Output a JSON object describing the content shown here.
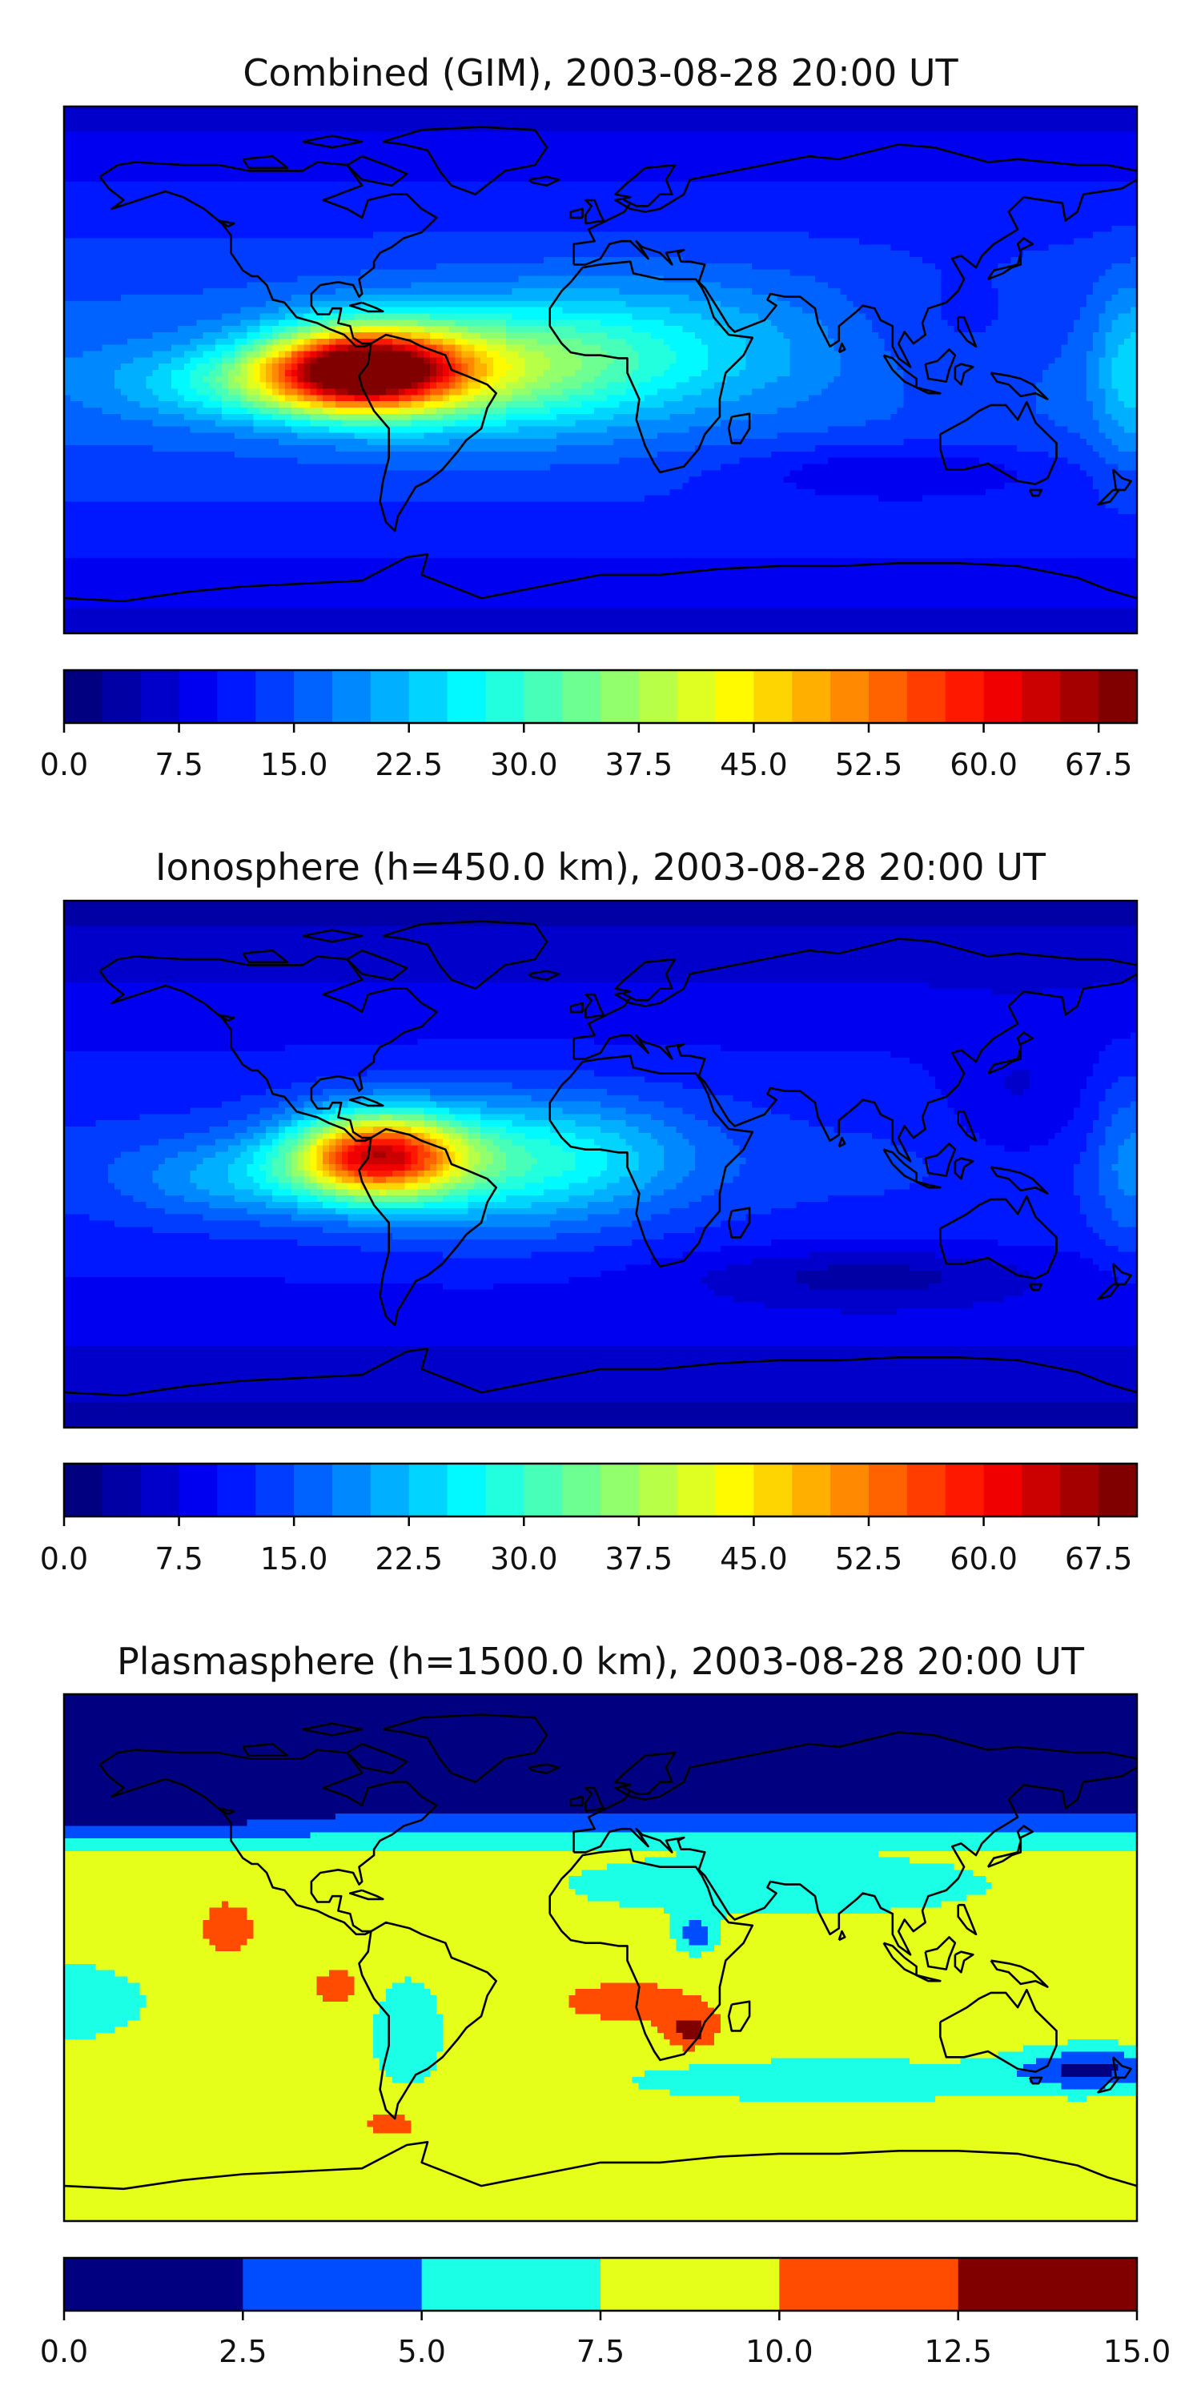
{
  "chart_data": [
    {
      "type": "heatmap",
      "title": "Combined (GIM), 2003-08-28 20:00 UT",
      "colorbar": {
        "range": [
          0,
          70
        ],
        "levels": 28,
        "ticks": [
          "0.0",
          "7.5",
          "15.0",
          "22.5",
          "30.0",
          "37.5",
          "45.0",
          "52.5",
          "60.0",
          "67.5"
        ],
        "colormap": "jet"
      },
      "field": {
        "background": 16,
        "features": [
          {
            "name": "South American equatorial anomaly",
            "lon": -80,
            "lat": 0,
            "peak": 68
          },
          {
            "name": "Atlantic extension",
            "lon": -40,
            "lat": 0,
            "peak": 35
          },
          {
            "name": "African equatorial band",
            "lon": 15,
            "lat": 10,
            "peak": 22
          },
          {
            "name": "Southern low",
            "lon": 100,
            "lat": -35,
            "peak": 8
          }
        ]
      }
    },
    {
      "type": "heatmap",
      "title": "Ionosphere  (h=450.0 km), 2003-08-28 20:00 UT",
      "colorbar": {
        "range": [
          0,
          70
        ],
        "levels": 28,
        "ticks": [
          "0.0",
          "7.5",
          "15.0",
          "22.5",
          "30.0",
          "37.5",
          "45.0",
          "52.5",
          "60.0",
          "67.5"
        ],
        "colormap": "jet"
      },
      "field": {
        "background": 12,
        "features": [
          {
            "name": "South American equatorial anomaly",
            "lon": -75,
            "lat": 3,
            "peak": 55
          },
          {
            "name": "Atlantic extension",
            "lon": -35,
            "lat": 0,
            "peak": 25
          },
          {
            "name": "Southern Indian Ocean low",
            "lon": 90,
            "lat": -38,
            "peak": 4
          }
        ]
      }
    },
    {
      "type": "heatmap",
      "title": "Plasmasphere (h=1500.0 km), 2003-08-28 20:00 UT",
      "colorbar": {
        "range": [
          0,
          15
        ],
        "levels": 6,
        "ticks": [
          "0.0",
          "2.5",
          "5.0",
          "7.5",
          "10.0",
          "12.5",
          "15.0"
        ],
        "colormap": "jet"
      },
      "field": {
        "background": 8.5,
        "features": [
          {
            "name": "Northern low",
            "lon": 0,
            "lat": 65,
            "peak": 1.5
          },
          {
            "name": "Southern Africa maximum",
            "lon": 30,
            "lat": -23,
            "peak": 12.8
          },
          {
            "name": "East Africa minimum",
            "lon": 32,
            "lat": 8,
            "peak": 3.5
          },
          {
            "name": "Tasman low",
            "lon": 165,
            "lat": -38,
            "peak": 1.8
          }
        ]
      }
    }
  ]
}
